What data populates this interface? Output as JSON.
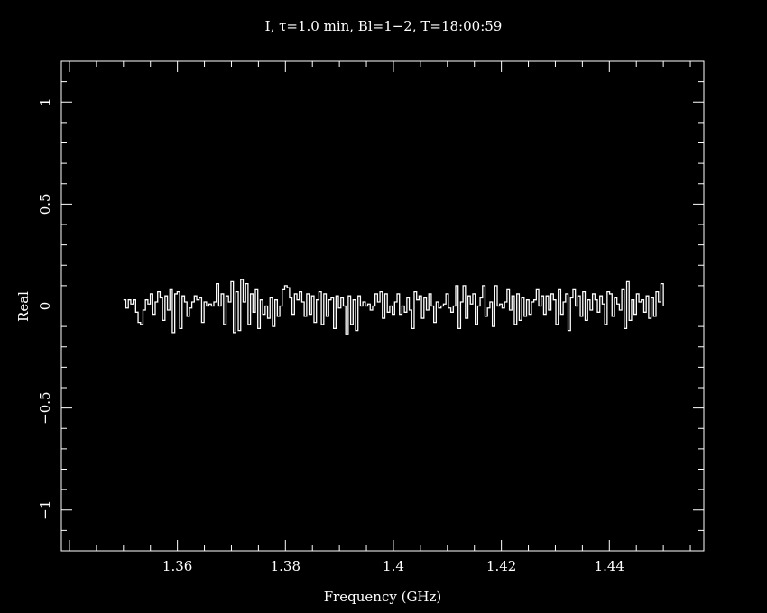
{
  "chart_data": {
    "type": "line",
    "title": "I, τ=1.0 min, Bl=1−2, T=18:00:59",
    "xlabel": "Frequency (GHz)",
    "ylabel": "Real",
    "xlim": [
      1.3385,
      1.4575
    ],
    "ylim": [
      -1.2,
      1.2
    ],
    "x_ticks": [
      1.36,
      1.38,
      1.4,
      1.42,
      1.44
    ],
    "x_tick_labels": [
      "1.36",
      "1.38",
      "1.4",
      "1.42",
      "1.44"
    ],
    "y_ticks": [
      1,
      0.5,
      0,
      -0.5,
      -1
    ],
    "y_tick_labels": [
      "1",
      "0.5",
      "0",
      "−0.5",
      "−1"
    ],
    "grid": false,
    "background": "#000000",
    "foreground": "#ffffff",
    "series": [
      {
        "x_start": 1.35,
        "x_end": 1.45,
        "step": "histogram",
        "values": [
          0.03,
          -0.01,
          0.03,
          0.01,
          0.03,
          -0.03,
          -0.08,
          -0.09,
          -0.02,
          0.03,
          0.01,
          0.06,
          -0.04,
          0.02,
          0.07,
          0.04,
          -0.07,
          0.05,
          -0.02,
          0.08,
          -0.13,
          0.06,
          0.07,
          -0.11,
          0.05,
          0.02,
          -0.05,
          -0.01,
          0.02,
          0.05,
          0.03,
          0.04,
          -0.08,
          0.02,
          0.0,
          0.01,
          0.0,
          0.02,
          0.11,
          0.0,
          0.06,
          -0.09,
          0.05,
          0.02,
          0.12,
          -0.13,
          0.07,
          -0.12,
          0.13,
          0.02,
          0.11,
          -0.09,
          0.06,
          -0.03,
          0.08,
          -0.11,
          0.03,
          -0.04,
          0.0,
          -0.06,
          0.04,
          -0.1,
          0.03,
          -0.05,
          0.0,
          0.08,
          0.1,
          0.09,
          0.04,
          -0.04,
          0.06,
          0.03,
          0.07,
          0.02,
          -0.05,
          0.06,
          -0.04,
          0.05,
          -0.08,
          0.03,
          0.07,
          -0.09,
          0.06,
          -0.05,
          0.03,
          0.04,
          -0.11,
          0.05,
          -0.01,
          0.04,
          0.0,
          -0.14,
          0.05,
          -0.09,
          0.03,
          -0.12,
          0.05,
          0.0,
          0.02,
          0.0,
          0.01,
          -0.02,
          0.0,
          0.06,
          0.02,
          0.07,
          -0.06,
          0.06,
          -0.03,
          0.0,
          -0.04,
          0.02,
          0.06,
          -0.04,
          0.0,
          -0.03,
          0.04,
          -0.02,
          -0.11,
          0.07,
          0.03,
          0.05,
          -0.06,
          0.04,
          -0.02,
          0.06,
          0.0,
          -0.08,
          0.02,
          -0.01,
          0.0,
          0.01,
          0.06,
          -0.01,
          -0.03,
          0.0,
          0.1,
          -0.11,
          0.02,
          0.1,
          -0.06,
          0.05,
          0.01,
          0.06,
          -0.09,
          0.0,
          0.04,
          0.1,
          -0.05,
          -0.01,
          0.02,
          -0.1,
          0.1,
          0.0,
          0.01,
          -0.01,
          0.02,
          0.08,
          -0.02,
          0.05,
          -0.09,
          0.06,
          -0.07,
          0.04,
          -0.05,
          0.03,
          -0.04,
          0.02,
          0.03,
          0.08,
          0.0,
          0.05,
          -0.04,
          0.05,
          -0.02,
          0.06,
          0.03,
          -0.09,
          0.08,
          -0.04,
          0.02,
          0.06,
          -0.12,
          0.04,
          0.08,
          0.0,
          0.05,
          -0.05,
          0.07,
          -0.07,
          0.03,
          -0.02,
          0.06,
          0.03,
          -0.03,
          0.05,
          0.01,
          -0.09,
          0.07,
          0.06,
          -0.05,
          0.04,
          0.01,
          -0.02,
          0.08,
          -0.11,
          0.12,
          -0.07,
          0.03,
          -0.04,
          0.06,
          0.02,
          0.03,
          -0.03,
          0.05,
          -0.06,
          0.04,
          -0.05,
          0.07,
          0.02,
          0.11
        ]
      }
    ]
  }
}
